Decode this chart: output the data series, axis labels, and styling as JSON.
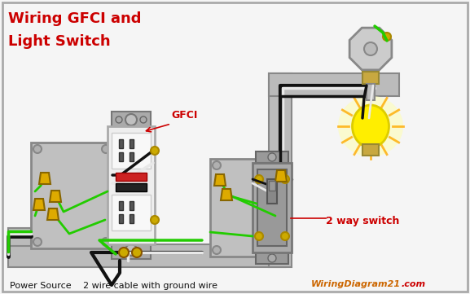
{
  "title_line1": "Wiring GFCI and",
  "title_line2": "Light Switch",
  "title_color": "#cc0000",
  "bg_color": "#f5f5f5",
  "border_color": "#aaaaaa",
  "label_power_source": "Power Source",
  "label_cable": "2 wire cable with ground wire",
  "label_gfci": "GFCI",
  "label_switch": "2 way switch",
  "label_watermark_orange": "WiringDiagram21",
  "label_watermark_red": ".com",
  "wire_black": "#111111",
  "wire_white": "#e8e8e8",
  "wire_green": "#22cc00",
  "wire_yellow_cap": "#ddaa00",
  "box_gray": "#aaaaaa",
  "box_dark": "#888888",
  "conduit_gray": "#bbbbbb",
  "outlet_white": "#eeeeee",
  "outlet_face": "#f8f8f8",
  "gfci_red_btn": "#cc2222",
  "gfci_black_btn": "#222222",
  "switch_gray": "#999999",
  "switch_dark": "#666666",
  "screw_gold": "#ccaa00",
  "screw_gold_dark": "#aa8800",
  "screw_green": "#007700",
  "light_yellow": "#ffee00",
  "light_orange": "#ffaa00",
  "lamp_gray": "#bbbbbb",
  "lamp_base_gold": "#c8a840"
}
